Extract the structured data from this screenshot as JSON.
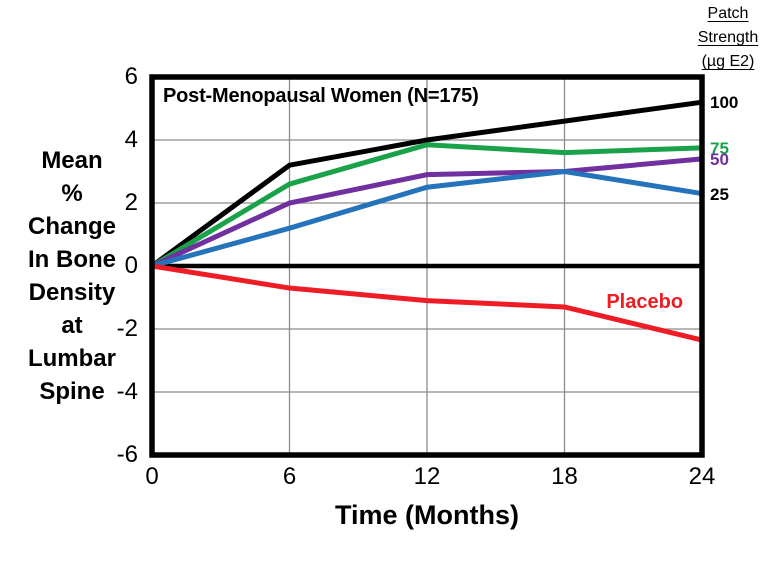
{
  "legend": {
    "title_lines": [
      "Patch",
      "Strength",
      "(µg E2)"
    ]
  },
  "chart_data": {
    "type": "line",
    "title": "Post-Menopausal Women (N=175)",
    "xlabel": "Time (Months)",
    "ylabel_lines": [
      "Mean",
      "%",
      "Change",
      "In Bone",
      "Density",
      "at",
      "Lumbar",
      "Spine"
    ],
    "x": [
      0,
      6,
      12,
      18,
      24
    ],
    "xlim": [
      0,
      24
    ],
    "ylim": [
      -6,
      6
    ],
    "x_ticks": [
      0,
      6,
      12,
      18,
      24
    ],
    "y_ticks": [
      6,
      4,
      2,
      0,
      "-2",
      "-4",
      "-6"
    ],
    "grid": true,
    "gridline_color": "#8c8c8c",
    "frame_color": "#000000",
    "zero_line": true,
    "series": [
      {
        "name": "100",
        "color": "#000000",
        "label": "100",
        "label_color": "#000000",
        "values": [
          0,
          3.2,
          4.0,
          4.6,
          5.2
        ]
      },
      {
        "name": "75",
        "color": "#1aa24b",
        "label": "75",
        "label_color": "#1aa24b",
        "values": [
          0,
          2.6,
          3.85,
          3.6,
          3.75
        ]
      },
      {
        "name": "50",
        "color": "#7030a0",
        "label": "50",
        "label_color": "#7030a0",
        "values": [
          0,
          2.0,
          2.9,
          3.0,
          3.4
        ]
      },
      {
        "name": "25",
        "color": "#2473bb",
        "label": "25",
        "label_color": "#000000",
        "values": [
          0,
          1.2,
          2.5,
          3.0,
          2.3
        ]
      },
      {
        "name": "Placebo",
        "color": "#ee1c24",
        "label": "Placebo",
        "label_color": "#ee1c24",
        "values": [
          0,
          -0.7,
          -1.1,
          -1.3,
          -2.35
        ],
        "inline_label": {
          "x": 21.5,
          "y": -1.15
        }
      }
    ]
  }
}
